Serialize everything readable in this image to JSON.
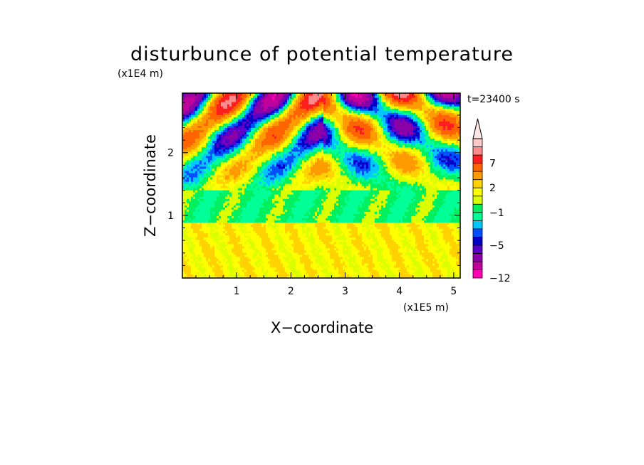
{
  "chart_data": {
    "type": "heatmap",
    "title": "disturbunce of potential temperature",
    "time_label": "t=23400 s",
    "xlabel": "X−coordinate",
    "ylabel": "Z−coordinate",
    "x_multiplier": "(x1E5 m)",
    "y_multiplier": "(x1E4 m)",
    "xlim": [
      0,
      5.12
    ],
    "ylim": [
      0,
      2.95
    ],
    "x_ticks": [
      {
        "value": 1,
        "label": "1"
      },
      {
        "value": 2,
        "label": "2"
      },
      {
        "value": 3,
        "label": "3"
      },
      {
        "value": 4,
        "label": "4"
      },
      {
        "value": 5,
        "label": "5"
      }
    ],
    "y_ticks": [
      {
        "value": 1,
        "label": "1"
      },
      {
        "value": 2,
        "label": "2"
      }
    ],
    "colorbar": {
      "levels": [
        -12,
        -10,
        -8,
        -6,
        -5,
        -4,
        -3,
        -2,
        -1,
        0,
        1,
        2,
        3,
        5,
        7,
        9,
        11
      ],
      "colors": [
        "#ff00b4",
        "#c0009c",
        "#8c00a8",
        "#5a00c8",
        "#0000c8",
        "#0050ff",
        "#00c8ff",
        "#00ff96",
        "#00f060",
        "#dcff00",
        "#ffff00",
        "#ffd200",
        "#ff9b00",
        "#ff6400",
        "#ff1e1e",
        "#ff8c8c",
        "#ffc8c8"
      ],
      "over_color": "#ffe6e6",
      "labels": [
        {
          "value": -12,
          "label": "−12"
        },
        {
          "value": -5,
          "label": "−5"
        },
        {
          "value": -1,
          "label": "−1"
        },
        {
          "value": 2,
          "label": "2"
        },
        {
          "value": 7,
          "label": "7"
        }
      ]
    },
    "field_description_rows": [
      {
        "z_range": [
          0,
          0.9
        ],
        "dominant": "2",
        "colors": [
          "#ffff00",
          "#ffd200",
          "#dcff00"
        ]
      },
      {
        "z_range": [
          0.9,
          1.4
        ],
        "dominant": "-1",
        "colors": [
          "#00f060",
          "#00ff96"
        ]
      },
      {
        "z_range": [
          1.4,
          2.95
        ],
        "dominant": "mixed",
        "colors": [
          "#ff1e1e",
          "#ff6400",
          "#0000c8",
          "#00c8ff",
          "#5a00c8",
          "#ffd200",
          "#00f060"
        ]
      }
    ]
  }
}
